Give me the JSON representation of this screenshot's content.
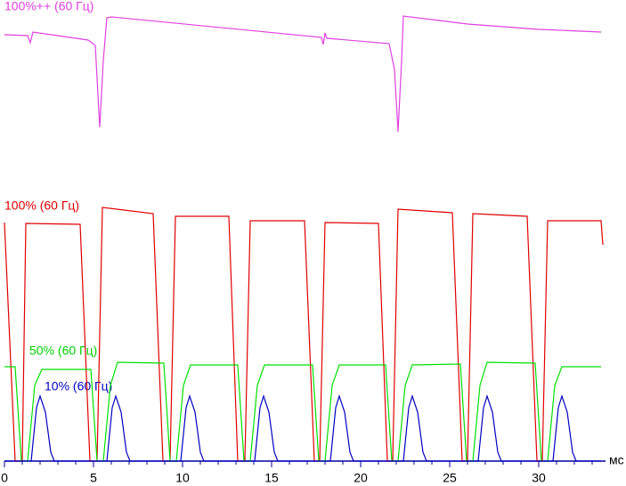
{
  "chart_data": {
    "type": "line",
    "xlabel": "мс",
    "xlim": [
      0,
      34.9
    ],
    "ylim": [
      0,
      100
    ],
    "xticks": [
      0,
      5,
      10,
      15,
      20,
      25,
      30
    ],
    "xminorticks": [
      0,
      1,
      2,
      3,
      4,
      5,
      6,
      7,
      8,
      9,
      10,
      11,
      12,
      13,
      14,
      15,
      16,
      17,
      18,
      19,
      20,
      21,
      22,
      23,
      24,
      25,
      26,
      27,
      28,
      29,
      30,
      31,
      32,
      33
    ],
    "axis_color": "#0000a0",
    "series": [
      {
        "name": "100%++ (60 Гц)",
        "color": "#e040e0",
        "x": [
          0,
          1.3,
          1.45,
          1.6,
          4.7,
          5.1,
          5.35,
          5.55,
          5.75,
          6.0,
          17.8,
          17.9,
          18.0,
          18.1,
          21.6,
          21.9,
          22.1,
          22.3,
          22.4,
          26,
          30,
          33.5
        ],
        "values": [
          95.8,
          95.6,
          94,
          96.4,
          94.6,
          93.4,
          75,
          90,
          99.6,
          99.8,
          95.2,
          93.6,
          96.2,
          95,
          93.8,
          88,
          74,
          90,
          100,
          98.2,
          97,
          96.4
        ]
      },
      {
        "name": "100% (60 Гц)",
        "color": "#e00000",
        "x": [
          0,
          0.6,
          1.0,
          1.2,
          4.25,
          4.8,
          5.2,
          5.5,
          8.35,
          8.9,
          9.3,
          9.6,
          12.6,
          13.1,
          13.5,
          13.8,
          16.85,
          17.4,
          17.7,
          18.0,
          21.0,
          21.5,
          21.8,
          22.1,
          25.15,
          25.7,
          26.0,
          26.3,
          29.35,
          29.9,
          30.2,
          30.5,
          33.5,
          33.6
        ],
        "values": [
          53.6,
          0,
          0,
          53.4,
          53.2,
          0,
          0,
          57,
          55.6,
          0,
          0,
          55,
          55,
          0,
          0,
          54,
          54,
          0,
          0,
          53.6,
          53.4,
          0,
          0,
          56.6,
          55.8,
          0,
          0,
          55.6,
          55,
          0,
          0,
          54,
          54,
          48.6
        ]
      },
      {
        "name": "50% (60 Гц)",
        "color": "#00e000",
        "x": [
          0,
          0.6,
          0.95,
          1.3,
          1.7,
          2.1,
          4.85,
          5.2,
          5.55,
          5.95,
          6.35,
          8.95,
          9.3,
          9.65,
          10.05,
          10.45,
          13.1,
          13.45,
          13.8,
          14.2,
          14.6,
          17.3,
          17.65,
          18,
          18.4,
          18.8,
          21.4,
          21.75,
          22.1,
          22.5,
          22.9,
          25.6,
          25.95,
          26.3,
          26.7,
          27.1,
          29.8,
          30.15,
          30.5,
          30.9,
          31.3,
          33.5
        ],
        "values": [
          21.2,
          21.2,
          0,
          0,
          17,
          20.6,
          20.6,
          0,
          0,
          17,
          22.2,
          22,
          0,
          0,
          17,
          21.6,
          21.6,
          0,
          0,
          17,
          21.6,
          21.6,
          0,
          0,
          17,
          21.6,
          21.6,
          0,
          0,
          17,
          21.6,
          21.8,
          0,
          0,
          17,
          22.2,
          22,
          0,
          0,
          17,
          21.2,
          21.2
        ]
      },
      {
        "name": "10% (60 Гц)",
        "color": "#0000c0",
        "x": [
          0,
          1.5,
          1.8,
          2.0,
          2.3,
          2.6,
          2.8,
          5.75,
          6.05,
          6.25,
          6.55,
          6.85,
          7.05,
          9.9,
          10.2,
          10.4,
          10.7,
          11.0,
          11.2,
          14.05,
          14.35,
          14.55,
          14.85,
          15.15,
          15.35,
          18.3,
          18.6,
          18.8,
          19.1,
          19.4,
          19.6,
          22.4,
          22.7,
          22.9,
          23.2,
          23.5,
          23.7,
          26.6,
          26.9,
          27.1,
          27.4,
          27.7,
          27.9,
          30.8,
          31.1,
          31.3,
          31.6,
          31.9,
          32.1,
          33.5
        ],
        "values": [
          0,
          0,
          12,
          14.6,
          11,
          2,
          0,
          0,
          12,
          14.6,
          11,
          2,
          0,
          0,
          12,
          14.6,
          11,
          2,
          0,
          0,
          12,
          14.6,
          11,
          2,
          0,
          0,
          12,
          14.6,
          11,
          2,
          0,
          0,
          12,
          14.6,
          11,
          2,
          0,
          0,
          12,
          14.6,
          11,
          2,
          0,
          0,
          12,
          14.6,
          11,
          2,
          0,
          0
        ]
      }
    ]
  }
}
